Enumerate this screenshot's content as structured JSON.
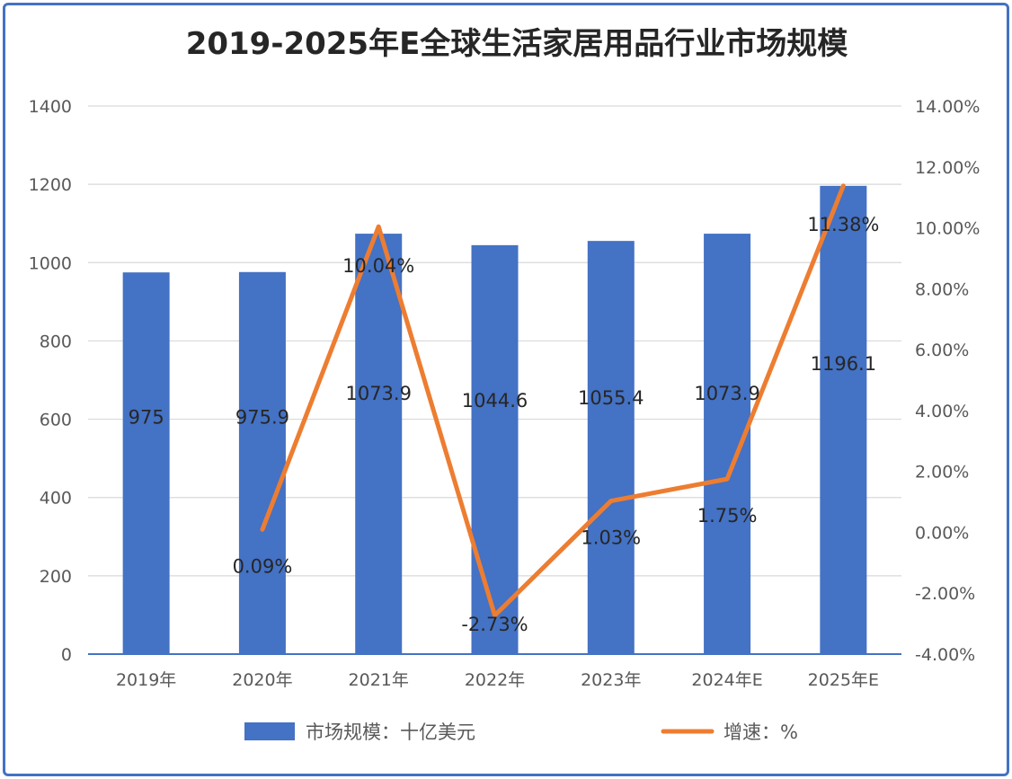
{
  "chart_data": {
    "type": "bar+line",
    "title": "2019-2025年E全球生活家居用品行业市场规模",
    "categories": [
      "2019年",
      "2020年",
      "2021年",
      "2022年",
      "2023年",
      "2024年E",
      "2025年E"
    ],
    "series": [
      {
        "name": "市场规模：十亿美元",
        "type": "bar",
        "axis": "left",
        "color": "#4472C4",
        "values": [
          975,
          975.9,
          1073.9,
          1044.6,
          1055.4,
          1073.9,
          1196.1
        ],
        "labels": [
          "975",
          "975.9",
          "1073.9",
          "1044.6",
          "1055.4",
          "1073.9",
          "1196.1"
        ]
      },
      {
        "name": "增速：%",
        "type": "line",
        "axis": "right",
        "color": "#ED7D31",
        "values": [
          null,
          0.09,
          10.04,
          -2.73,
          1.03,
          1.75,
          11.38
        ],
        "labels": [
          null,
          "0.09%",
          "10.04%",
          "-2.73%",
          "1.03%",
          "1.75%",
          "11.38%"
        ]
      }
    ],
    "left_axis": {
      "range": [
        0,
        1400
      ],
      "ticks": [
        "0",
        "200",
        "400",
        "600",
        "800",
        "1000",
        "1200",
        "1400"
      ]
    },
    "right_axis": {
      "range": [
        -4,
        14
      ],
      "ticks": [
        "-4.00%",
        "-2.00%",
        "0.00%",
        "2.00%",
        "4.00%",
        "6.00%",
        "8.00%",
        "10.00%",
        "12.00%",
        "14.00%"
      ]
    },
    "grid": true,
    "legend": "bottom"
  }
}
